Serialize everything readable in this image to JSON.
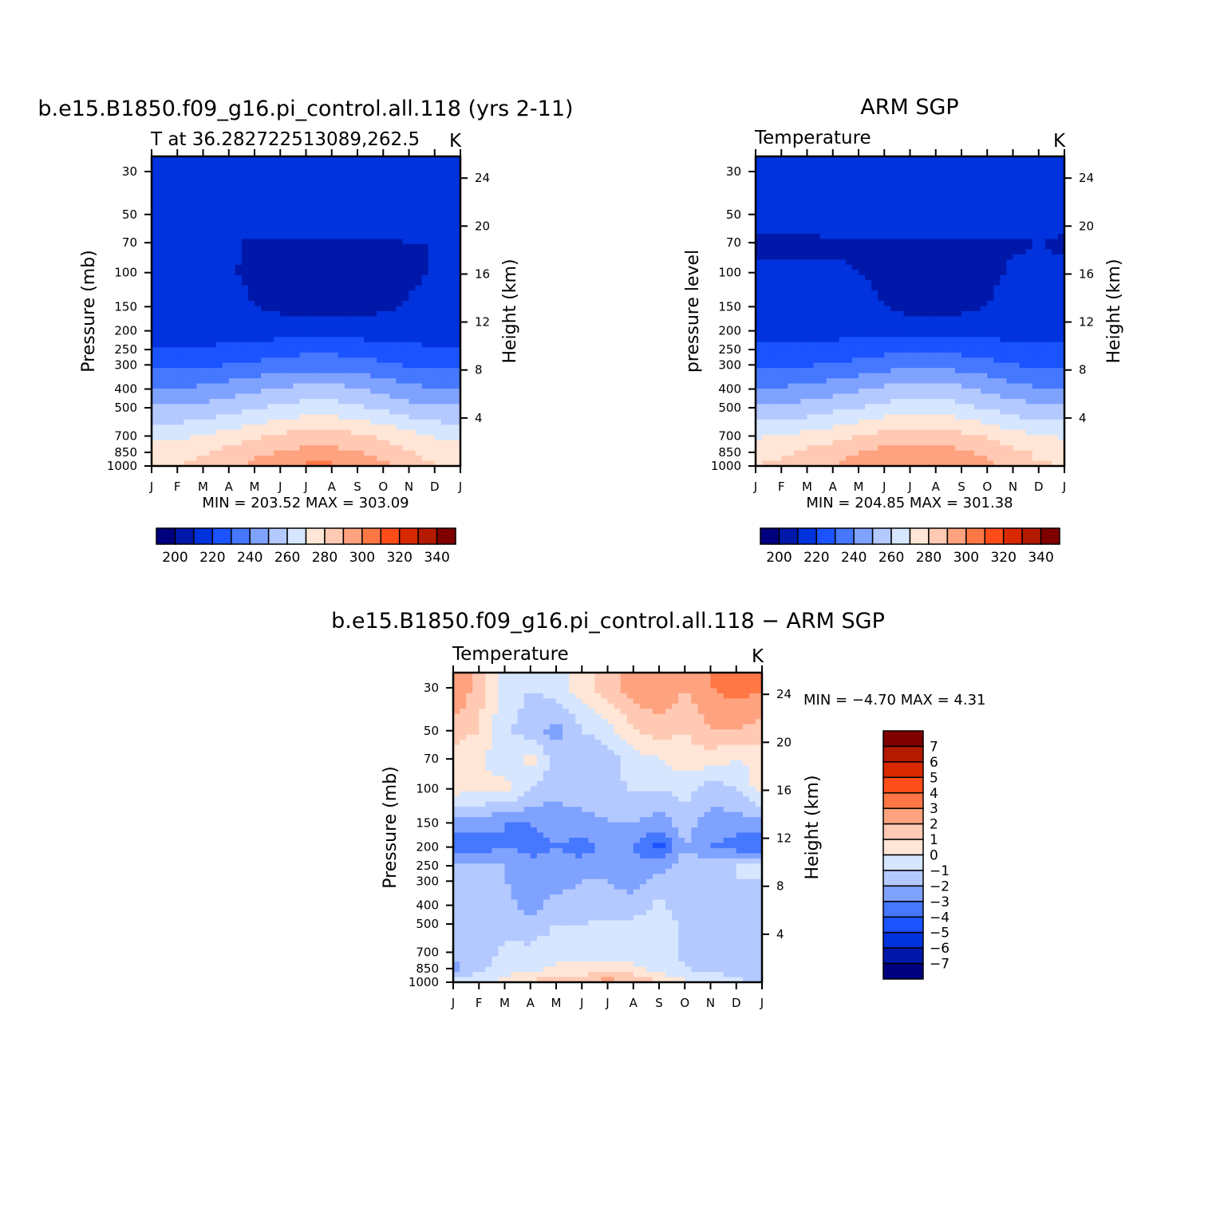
{
  "panels": [
    {
      "id": "model",
      "title": "b.e15.B1850.f09_g16.pi_control.all.118 (yrs 2-11)",
      "left_label": "T at 36.282722513089,262.5",
      "units": "K",
      "ylabel": "Pressure (mb)",
      "ylabel2": "Height (km)",
      "minmax": "MIN = 203.52 MAX = 303.09"
    },
    {
      "id": "obs",
      "title": "ARM SGP",
      "left_label": "Temperature",
      "units": "K",
      "ylabel": "pressure level",
      "ylabel2": "Height (km)",
      "minmax": "MIN = 204.85 MAX = 301.38"
    },
    {
      "id": "diff",
      "title": "b.e15.B1850.f09_g16.pi_control.all.118 − ARM SGP",
      "left_label": "Temperature",
      "units": "K",
      "ylabel": "Pressure (mb)",
      "ylabel2": "Height (km)",
      "minmax": "MIN = −4.70 MAX = 4.31"
    }
  ],
  "chart_data": [
    {
      "type": "heatmap",
      "title": "b.e15.B1850.f09_g16.pi_control.all.118 (yrs 2-11)",
      "x": [
        "J",
        "F",
        "M",
        "A",
        "M",
        "J",
        "J",
        "A",
        "S",
        "O",
        "N",
        "D",
        "J"
      ],
      "y_pressure_mb": [
        30,
        50,
        70,
        100,
        150,
        200,
        250,
        300,
        400,
        500,
        700,
        850,
        1000
      ],
      "y_height_km": [
        4,
        8,
        12,
        16,
        20,
        24
      ],
      "xlabel": "",
      "ylabel": "Pressure (mb)",
      "ylabel_right": "Height (km)",
      "units": "K",
      "min": 203.52,
      "max": 303.09,
      "levels": [
        200,
        210,
        220,
        230,
        240,
        250,
        260,
        270,
        280,
        290,
        300,
        310,
        320,
        330,
        340
      ],
      "colorbar_labels": [
        "200",
        "220",
        "240",
        "260",
        "280",
        "300",
        "320",
        "340"
      ],
      "values_K": [
        [
          214,
          214,
          214,
          214,
          215,
          216,
          217,
          217,
          217,
          216,
          214,
          214,
          214
        ],
        [
          214,
          214,
          214,
          214,
          214,
          215,
          215,
          215,
          215,
          214,
          214,
          214,
          214
        ],
        [
          210,
          211,
          211,
          211,
          209,
          209,
          209,
          209,
          209,
          209,
          210,
          210,
          210
        ],
        [
          211,
          211,
          211,
          211,
          208,
          207,
          206,
          206,
          206,
          207,
          208,
          211,
          211
        ],
        [
          213,
          213,
          213,
          213,
          210,
          208,
          207,
          207,
          207,
          208,
          211,
          213,
          213
        ],
        [
          216,
          216,
          216,
          216,
          216,
          215,
          214,
          214,
          215,
          216,
          216,
          216,
          216
        ],
        [
          221,
          221,
          221,
          222,
          224,
          226,
          227,
          227,
          226,
          224,
          222,
          221,
          221
        ],
        [
          227,
          227,
          228,
          230,
          232,
          235,
          236,
          236,
          235,
          232,
          229,
          227,
          227
        ],
        [
          240,
          240,
          242,
          245,
          248,
          251,
          253,
          253,
          251,
          247,
          243,
          240,
          240
        ],
        [
          251,
          251,
          253,
          256,
          259,
          262,
          264,
          264,
          262,
          258,
          254,
          251,
          251
        ],
        [
          268,
          268,
          271,
          274,
          278,
          282,
          284,
          284,
          282,
          278,
          273,
          269,
          268
        ],
        [
          276,
          276,
          279,
          283,
          287,
          291,
          293,
          293,
          291,
          287,
          281,
          277,
          276
        ],
        [
          279,
          280,
          283,
          287,
          293,
          298,
          302,
          302,
          299,
          292,
          285,
          280,
          279
        ]
      ]
    },
    {
      "type": "heatmap",
      "title": "ARM SGP",
      "x": [
        "J",
        "F",
        "M",
        "A",
        "M",
        "J",
        "J",
        "A",
        "S",
        "O",
        "N",
        "D",
        "J"
      ],
      "y_pressure_mb": [
        30,
        50,
        70,
        100,
        150,
        200,
        250,
        300,
        400,
        500,
        700,
        850,
        1000
      ],
      "y_height_km": [
        4,
        8,
        12,
        16,
        20,
        24
      ],
      "xlabel": "",
      "ylabel": "pressure level",
      "ylabel_right": "Height (km)",
      "units": "K",
      "min": 204.85,
      "max": 301.38,
      "levels": [
        200,
        210,
        220,
        230,
        240,
        250,
        260,
        270,
        280,
        290,
        300,
        310,
        320,
        330,
        340
      ],
      "colorbar_labels": [
        "200",
        "220",
        "240",
        "260",
        "280",
        "300",
        "320",
        "340"
      ],
      "values_K": [
        [
          214,
          214,
          214,
          214,
          215,
          216,
          217,
          217,
          216,
          214,
          214,
          214,
          214
        ],
        [
          212,
          212,
          213,
          214,
          214,
          215,
          215,
          215,
          214,
          214,
          214,
          214,
          212
        ],
        [
          209,
          209,
          209,
          209,
          209,
          209,
          209,
          209,
          209,
          209,
          209,
          210,
          209
        ],
        [
          211,
          211,
          211,
          211,
          210,
          208,
          207,
          207,
          207,
          208,
          211,
          211,
          211
        ],
        [
          213,
          213,
          213,
          213,
          213,
          210,
          207,
          207,
          208,
          210,
          213,
          213,
          213
        ],
        [
          217,
          217,
          217,
          217,
          217,
          216,
          215,
          215,
          215,
          216,
          217,
          217,
          217
        ],
        [
          222,
          222,
          222,
          223,
          225,
          227,
          228,
          228,
          227,
          225,
          223,
          222,
          222
        ],
        [
          228,
          228,
          229,
          231,
          233,
          236,
          237,
          237,
          236,
          233,
          230,
          228,
          228
        ],
        [
          241,
          241,
          243,
          246,
          249,
          252,
          254,
          254,
          252,
          248,
          244,
          241,
          241
        ],
        [
          252,
          252,
          254,
          257,
          260,
          263,
          265,
          265,
          263,
          259,
          255,
          252,
          252
        ],
        [
          269,
          270,
          273,
          276,
          280,
          284,
          286,
          285,
          283,
          279,
          274,
          270,
          269
        ],
        [
          277,
          278,
          282,
          286,
          290,
          293,
          295,
          294,
          292,
          288,
          283,
          278,
          277
        ],
        [
          280,
          282,
          286,
          290,
          294,
          298,
          301,
          300,
          298,
          293,
          287,
          281,
          280
        ]
      ]
    },
    {
      "type": "heatmap",
      "title": "b.e15.B1850.f09_g16.pi_control.all.118 − ARM SGP",
      "x": [
        "J",
        "F",
        "M",
        "A",
        "M",
        "J",
        "J",
        "A",
        "S",
        "O",
        "N",
        "D",
        "J"
      ],
      "y_pressure_mb": [
        30,
        50,
        70,
        100,
        150,
        200,
        250,
        300,
        400,
        500,
        700,
        850,
        1000
      ],
      "y_height_km": [
        4,
        8,
        12,
        16,
        20,
        24
      ],
      "xlabel": "",
      "ylabel": "Pressure (mb)",
      "ylabel_right": "Height (km)",
      "units": "K",
      "min": -4.7,
      "max": 4.31,
      "levels": [
        -7,
        -6,
        -5,
        -4,
        -3,
        -2,
        -1,
        0,
        1,
        2,
        3,
        4,
        5,
        6,
        7
      ],
      "colorbar_labels": [
        "7",
        "6",
        "5",
        "4",
        "3",
        "2",
        "1",
        "0",
        "−1",
        "−2",
        "−3",
        "−4",
        "−5",
        "−6",
        "−7"
      ],
      "values_K": [
        [
          3.2,
          1.5,
          -0.5,
          -1.0,
          -0.5,
          0.5,
          1.5,
          2.5,
          3.0,
          2.0,
          3.0,
          3.4,
          3.2
        ],
        [
          1.5,
          1.0,
          -0.8,
          -1.5,
          -2.5,
          -1.0,
          -0.5,
          1.0,
          1.5,
          1.0,
          2.0,
          2.0,
          1.5
        ],
        [
          0.5,
          0.2,
          -0.8,
          0.5,
          -1.5,
          -1.8,
          -1.5,
          -0.5,
          0.0,
          0.5,
          0.5,
          0.0,
          0.5
        ],
        [
          0.5,
          0.3,
          0.5,
          -1.0,
          -1.8,
          -1.2,
          -1.5,
          -0.8,
          -1.0,
          -0.5,
          -1.5,
          -1.0,
          0.5
        ],
        [
          -2.5,
          -2.5,
          -3.0,
          -3.0,
          -2.5,
          -2.5,
          -2.0,
          -2.0,
          -2.5,
          -1.5,
          -2.5,
          -2.5,
          -2.5
        ],
        [
          -3.5,
          -3.5,
          -3.0,
          -3.5,
          -3.0,
          -3.5,
          -2.5,
          -3.0,
          -4.5,
          -2.0,
          -3.0,
          -3.5,
          -4.0
        ],
        [
          -1.8,
          -1.8,
          -2.0,
          -2.5,
          -2.5,
          -2.5,
          -2.5,
          -2.5,
          -2.5,
          -1.5,
          -1.5,
          -1.0,
          -1.0
        ],
        [
          -1.8,
          -1.8,
          -2.0,
          -2.8,
          -2.5,
          -2.0,
          -2.0,
          -2.5,
          -1.5,
          -2.0,
          -1.8,
          -1.0,
          -1.0
        ],
        [
          -1.5,
          -1.5,
          -1.5,
          -2.5,
          -1.5,
          -1.5,
          -1.5,
          -1.5,
          -0.8,
          -1.5,
          -1.8,
          -1.5,
          -1.5
        ],
        [
          -1.5,
          -1.5,
          -1.3,
          -1.5,
          -1.0,
          -1.0,
          -0.8,
          -0.8,
          -0.5,
          -1.2,
          -1.5,
          -1.5,
          -1.5
        ],
        [
          -1.5,
          -1.5,
          -0.8,
          -0.8,
          -0.5,
          -0.5,
          -0.5,
          -0.5,
          -0.5,
          -1.2,
          -1.5,
          -1.5,
          -1.5
        ],
        [
          -2.5,
          -1.2,
          -0.5,
          -0.3,
          0.2,
          0.3,
          0.3,
          0.2,
          -0.3,
          -1.0,
          -1.2,
          -1.5,
          -2.0
        ],
        [
          -0.3,
          -0.3,
          0.3,
          1.2,
          1.5,
          1.8,
          2.5,
          2.0,
          1.0,
          0.2,
          -0.3,
          -0.8,
          -1.0
        ]
      ]
    }
  ],
  "colors": {
    "abs_scale": [
      "#00007f",
      "#0018aa",
      "#0033dd",
      "#1a53ff",
      "#4577ff",
      "#7fa2ff",
      "#b3c9ff",
      "#d6e6ff",
      "#ffe6d6",
      "#ffc9b3",
      "#ffa27f",
      "#ff7745",
      "#ff4d1a",
      "#d92800",
      "#b31a00",
      "#800000"
    ],
    "diff_scale": [
      "#00007f",
      "#0018aa",
      "#0033dd",
      "#1a53ff",
      "#4577ff",
      "#7fa2ff",
      "#b3c9ff",
      "#d6e6ff",
      "#ffe6d6",
      "#ffc9b3",
      "#ffa27f",
      "#ff7745",
      "#ff4d1a",
      "#d92800",
      "#b31a00",
      "#800000"
    ]
  }
}
